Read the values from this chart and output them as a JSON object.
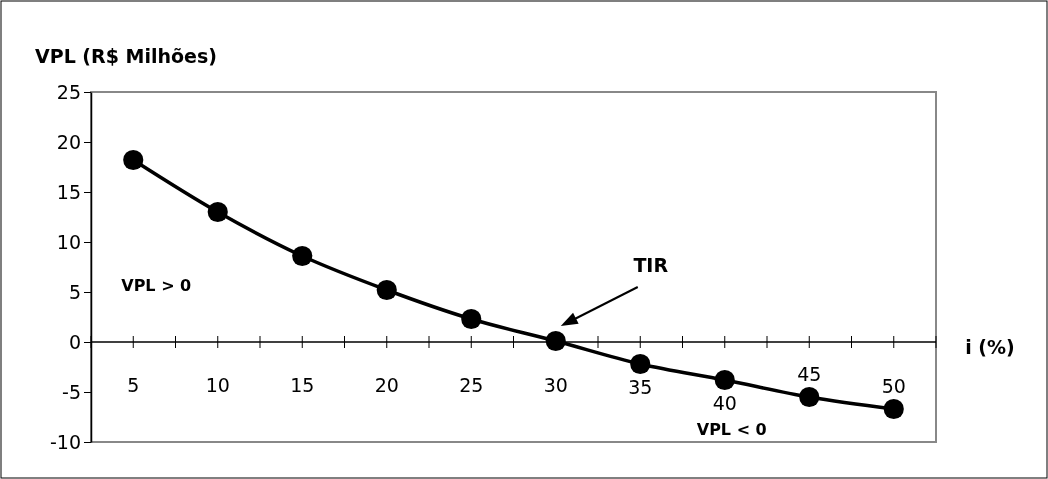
{
  "chart_data": {
    "type": "line",
    "title": "VPL (R$ Milhões)",
    "xlabel": "i (%)",
    "categories": [
      "5",
      "10",
      "15",
      "20",
      "25",
      "30",
      "35",
      "40",
      "45",
      "50"
    ],
    "series": [
      {
        "color": "#000000",
        "values": [
          18.2,
          13.0,
          8.6,
          5.2,
          2.3,
          0.1,
          -2.2,
          -3.8,
          -5.5,
          -6.7
        ]
      }
    ],
    "ylim": [
      -10,
      25
    ],
    "yticks": [
      -10,
      -5,
      0,
      5,
      10,
      15,
      20,
      25
    ],
    "grid": false,
    "marker": "circle",
    "line_style": "solid",
    "annotations": [
      "TIR",
      "VPL > 0",
      "VPL < 0"
    ]
  }
}
